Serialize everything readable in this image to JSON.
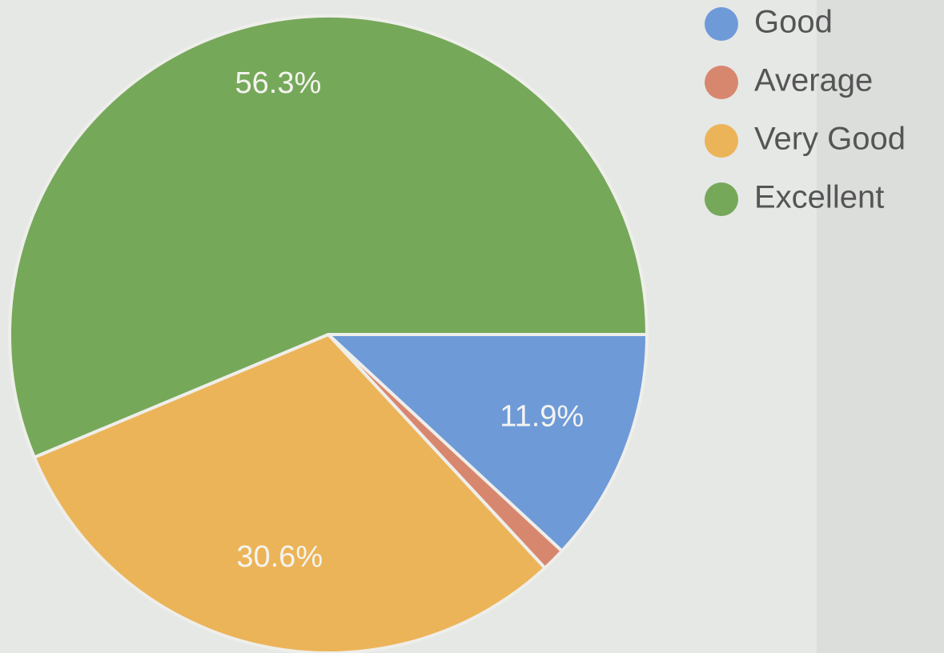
{
  "chart_data": {
    "type": "pie",
    "categories": [
      "Good",
      "Average",
      "Very Good",
      "Excellent"
    ],
    "values": [
      11.9,
      1.2,
      30.6,
      56.3
    ],
    "value_labels": [
      "11.9%",
      null,
      "30.6%",
      "56.3%"
    ],
    "colors": [
      "#6e9ad8",
      "#d8876f",
      "#ecb458",
      "#76a85a"
    ],
    "legend": "right"
  }
}
